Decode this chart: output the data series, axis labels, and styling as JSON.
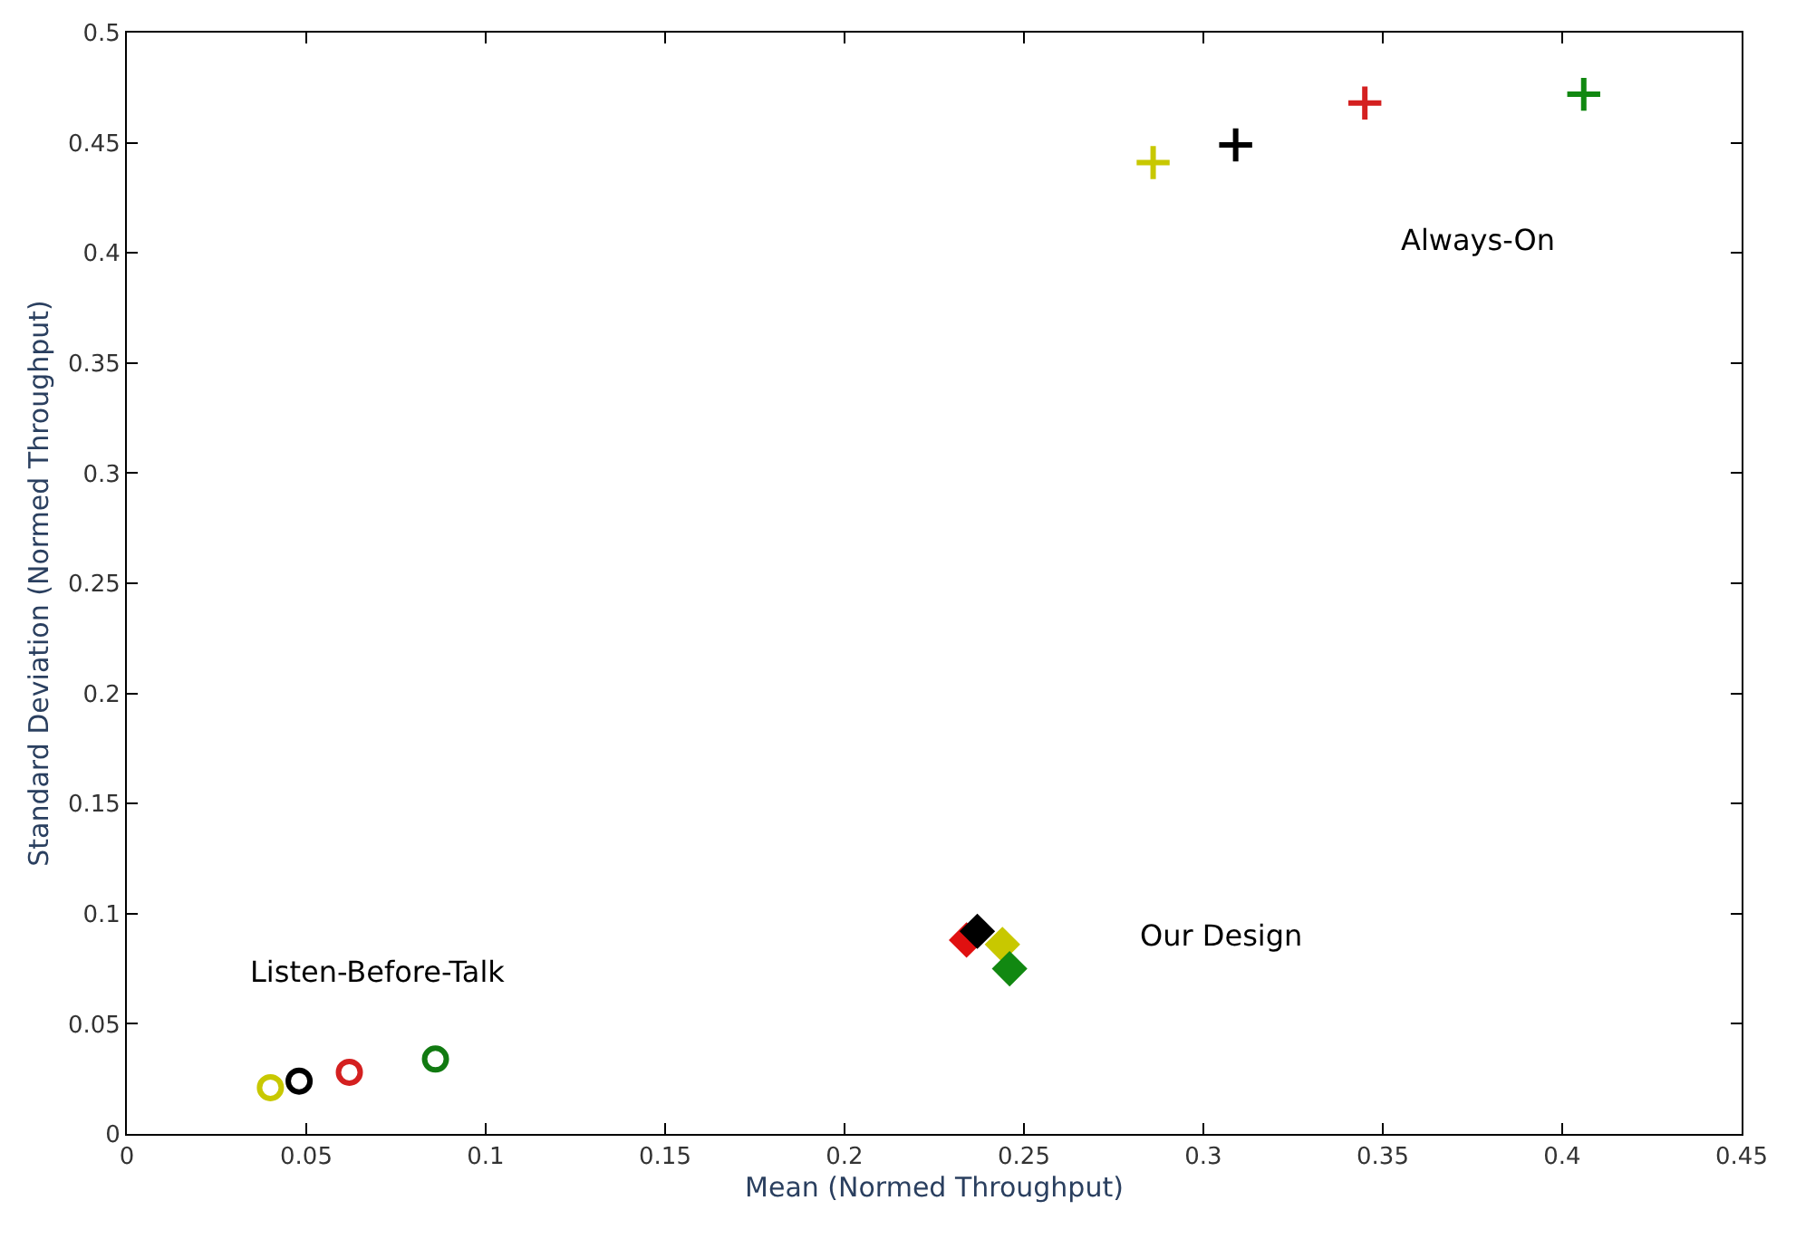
{
  "chart_data": {
    "type": "scatter",
    "xlabel": "Mean (Normed Throughput)",
    "ylabel": "Standard Deviation (Normed Throughput)",
    "xlim": [
      0,
      0.45
    ],
    "xticks": [
      0,
      0.05,
      0.1,
      0.15,
      0.2,
      0.25,
      0.3,
      0.35,
      0.4,
      0.45
    ],
    "ylim": [
      0,
      0.5
    ],
    "yticks": [
      0,
      0.05,
      0.1,
      0.15,
      0.2,
      0.25,
      0.3,
      0.35,
      0.4,
      0.45,
      0.5
    ],
    "grid": false,
    "series": [
      {
        "marker": "circle",
        "x": [
          0.04,
          0.048,
          0.062,
          0.086
        ],
        "values": [
          0.021,
          0.024,
          0.028,
          0.034
        ],
        "colors": [
          "#c8c800",
          "#000000",
          "#d42020",
          "#117a11"
        ]
      },
      {
        "marker": "diamond",
        "x": [
          0.234,
          0.237,
          0.244,
          0.246
        ],
        "values": [
          0.088,
          0.092,
          0.086,
          0.075
        ],
        "colors": [
          "#e01010",
          "#000000",
          "#c8c800",
          "#118811"
        ]
      },
      {
        "marker": "cross",
        "x": [
          0.286,
          0.309,
          0.345,
          0.406
        ],
        "values": [
          0.441,
          0.449,
          0.468,
          0.472
        ],
        "colors": [
          "#c8c800",
          "#000000",
          "#d42020",
          "#118811"
        ]
      }
    ],
    "annotations": [
      "Listen-Before-Talk",
      "Our Design",
      "Always-On"
    ]
  }
}
